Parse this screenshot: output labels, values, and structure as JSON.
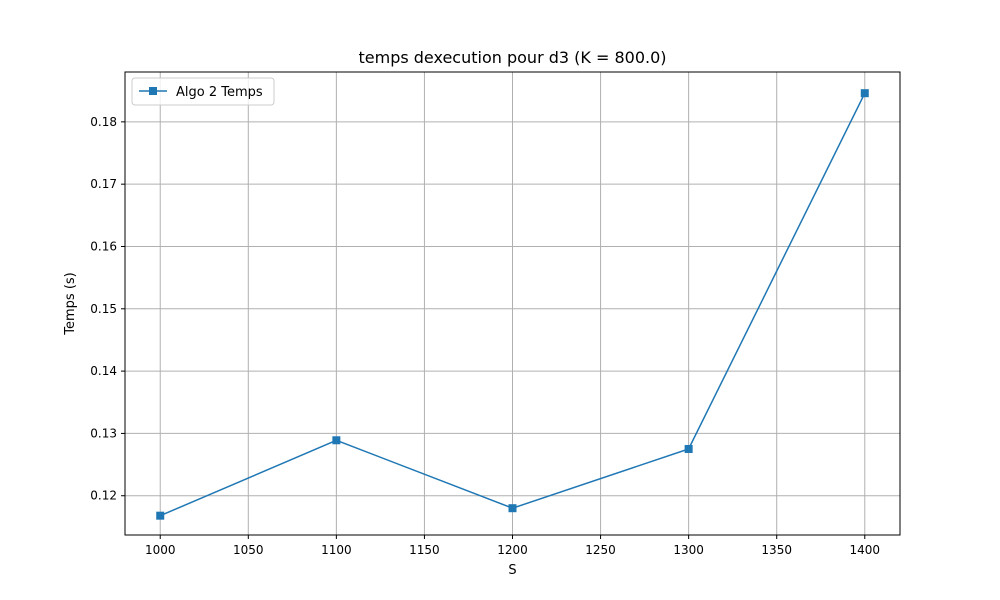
{
  "chart_data": {
    "type": "line",
    "title": "temps dexecution pour d3 (K = 800.0)",
    "xlabel": "S",
    "ylabel": "Temps (s)",
    "x": [
      1000,
      1100,
      1200,
      1300,
      1400
    ],
    "series": [
      {
        "name": "Algo 2 Temps",
        "values": [
          0.1168,
          0.1289,
          0.118,
          0.1275,
          0.1846
        ],
        "color": "#1f77b4",
        "marker": "square"
      }
    ],
    "xlim": [
      980,
      1420
    ],
    "ylim": [
      0.1137,
      0.188
    ],
    "xticks": [
      1000,
      1050,
      1100,
      1150,
      1200,
      1250,
      1300,
      1350,
      1400
    ],
    "yticks": [
      0.12,
      0.13,
      0.14,
      0.15,
      0.16,
      0.17,
      0.18
    ],
    "xtick_labels": [
      "1000",
      "1050",
      "1100",
      "1150",
      "1200",
      "1250",
      "1300",
      "1350",
      "1400"
    ],
    "ytick_labels": [
      "0.12",
      "0.13",
      "0.14",
      "0.15",
      "0.16",
      "0.17",
      "0.18"
    ],
    "grid": true,
    "legend": "upper-left"
  }
}
